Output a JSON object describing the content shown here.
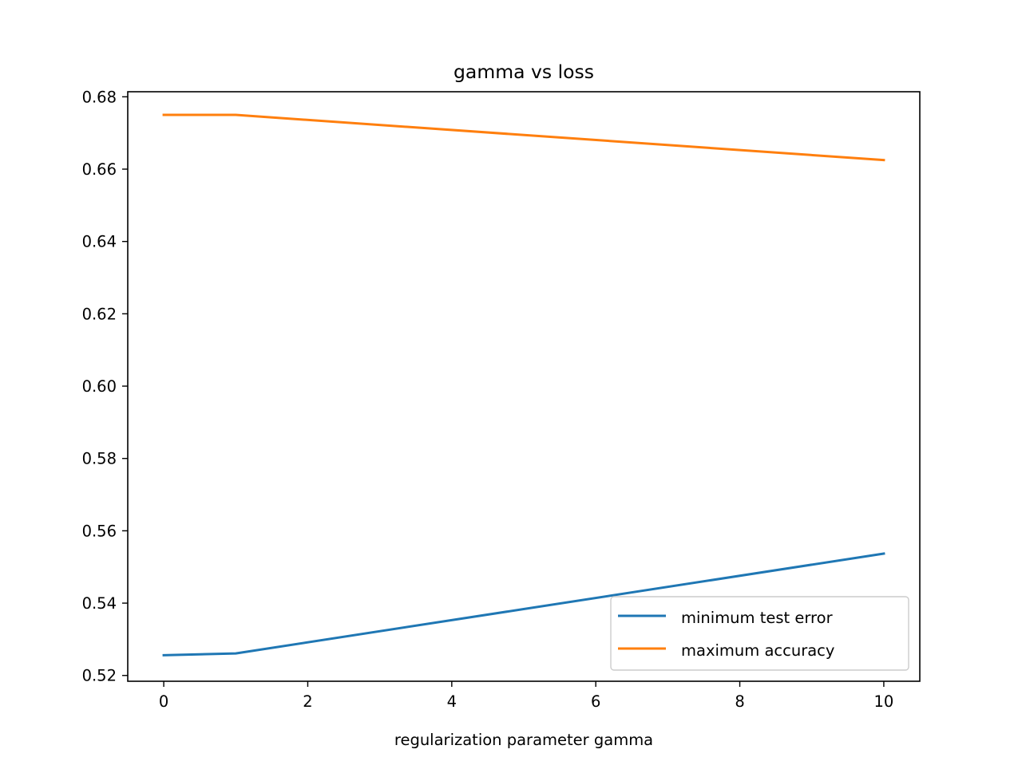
{
  "chart_data": {
    "type": "line",
    "title": "gamma vs loss",
    "xlabel": "regularization parameter gamma",
    "ylabel": "",
    "xlim": [
      -0.5,
      10.5
    ],
    "ylim": [
      0.5184,
      0.6814
    ],
    "xticks": [
      0,
      2,
      4,
      6,
      8,
      10
    ],
    "xtick_labels": [
      "0",
      "2",
      "4",
      "6",
      "8",
      "10"
    ],
    "yticks": [
      0.52,
      0.54,
      0.56,
      0.58,
      0.6,
      0.62,
      0.64,
      0.66,
      0.68
    ],
    "ytick_labels": [
      "0.52",
      "0.54",
      "0.56",
      "0.58",
      "0.60",
      "0.62",
      "0.64",
      "0.66",
      "0.68"
    ],
    "grid": false,
    "legend_position": "lower-right",
    "series": [
      {
        "name": "minimum test error",
        "color": "#1f77b4",
        "x": [
          0,
          1,
          10
        ],
        "y": [
          0.5256,
          0.5261,
          0.5537
        ]
      },
      {
        "name": "maximum accuracy",
        "color": "#ff7f0e",
        "x": [
          0,
          1,
          10
        ],
        "y": [
          0.675,
          0.675,
          0.6625
        ]
      }
    ]
  }
}
